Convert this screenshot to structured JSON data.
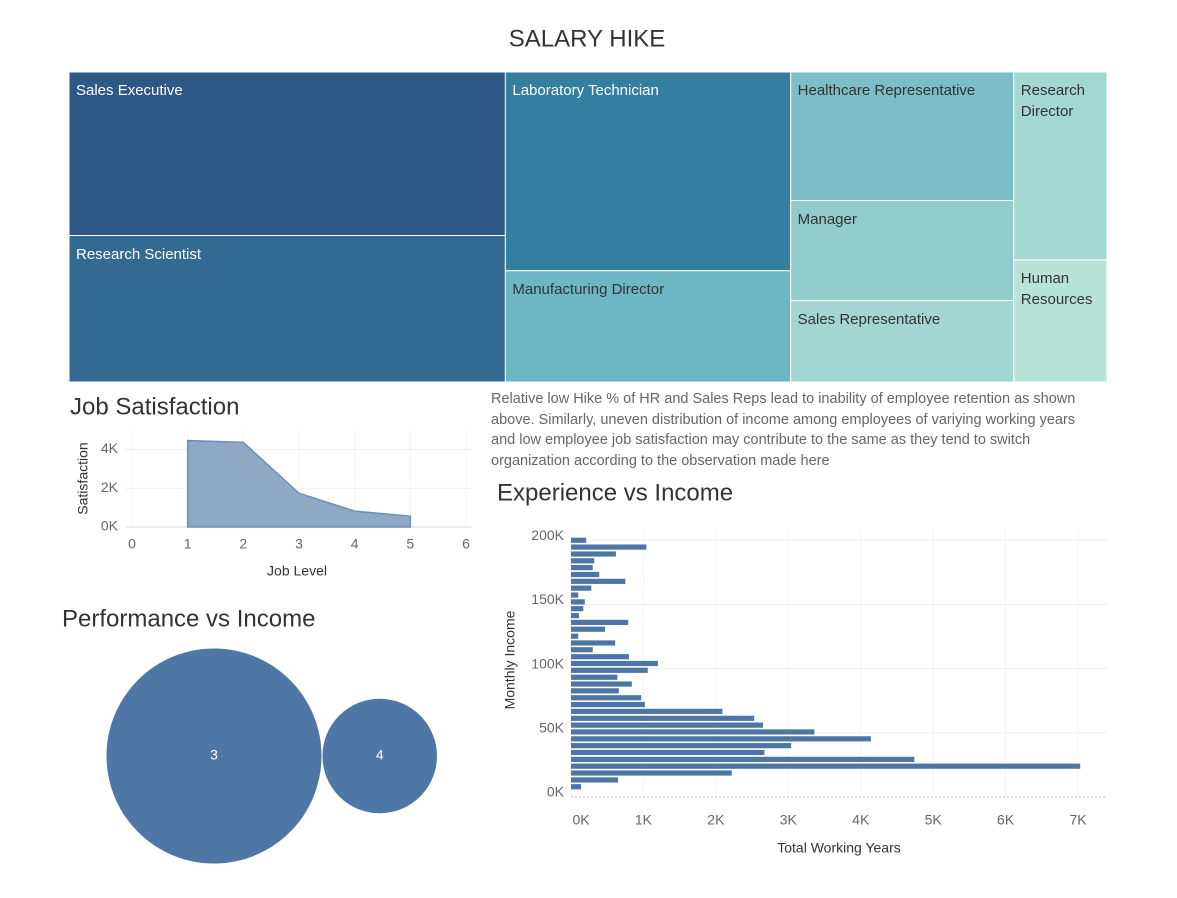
{
  "text": "Relative low Hike % of HR and Sales Reps lead to inability of employee retention as shown above. Similarly, uneven distribution of income among employees of variying working years and low employee job satisfaction may contribute to the same as they tend to switch organization according to the observation made here",
  "chart_data": [
    {
      "type": "treemap",
      "title": "SALARY HIKE",
      "categories": [
        "Sales Executive",
        "Research Scientist",
        "Laboratory Technician",
        "Manufacturing Director",
        "Healthcare Representative",
        "Manager",
        "Sales Representative",
        "Research Director",
        "Human Resources"
      ],
      "values": [
        4955,
        4438,
        3937,
        2204,
        1991,
        1550,
        1262,
        1216,
        790
      ],
      "colors": [
        "#2e5886",
        "#336a92",
        "#347ea0",
        "#6db7c4",
        "#7bbec8",
        "#91cbcb",
        "#a3d6d2",
        "#a3d7d2",
        "#b8e4d8"
      ]
    },
    {
      "type": "area",
      "title": "Job Satisfaction",
      "xlabel": "Job Level",
      "ylabel": "Satisfaction",
      "x": [
        1,
        2,
        3,
        4,
        5
      ],
      "values": [
        4460,
        4360,
        1740,
        820,
        560
      ],
      "color": "#8fa8c6",
      "line_color": "#6e8fb5",
      "xlim": [
        0,
        6
      ],
      "xticks": [
        0,
        1,
        2,
        3,
        4,
        5,
        6
      ],
      "ylim": [
        0,
        5000
      ],
      "yticks": [
        {
          "value": 0,
          "label": "0K"
        },
        {
          "value": 2000,
          "label": "2K"
        },
        {
          "value": 4000,
          "label": "4K"
        }
      ],
      "grid": true
    },
    {
      "type": "bubble",
      "title": "Performance vs Income",
      "categories": [
        "3",
        "4"
      ],
      "values": [
        3.5,
        1
      ],
      "color": "#4e77a5"
    },
    {
      "type": "bar",
      "orientation": "horizontal",
      "title": "Experience vs Income",
      "xlabel": "Total Working Years",
      "ylabel": "Monthly Income",
      "y": [
        8000,
        13300,
        18700,
        24000,
        29300,
        34700,
        40000,
        45300,
        50700,
        56000,
        61300,
        66700,
        72000,
        77300,
        82700,
        88000,
        93300,
        98700,
        104000,
        109300,
        114700,
        120000,
        125300,
        130700,
        136000,
        141300,
        146700,
        152000,
        157300,
        162700,
        168000,
        173300,
        178700,
        184000,
        189300,
        194700,
        200000
      ],
      "values": [
        140,
        650,
        2220,
        7030,
        4740,
        2670,
        3040,
        4140,
        3360,
        2650,
        2530,
        2090,
        1020,
        970,
        660,
        840,
        640,
        1060,
        1200,
        800,
        300,
        610,
        100,
        470,
        790,
        110,
        170,
        190,
        100,
        280,
        750,
        390,
        300,
        320,
        620,
        1040,
        210
      ],
      "color": "#4e76a4",
      "xlim": [
        0,
        7400
      ],
      "xticks": [
        {
          "value": 0,
          "label": "0K"
        },
        {
          "value": 1000,
          "label": "1K"
        },
        {
          "value": 2000,
          "label": "2K"
        },
        {
          "value": 3000,
          "label": "3K"
        },
        {
          "value": 4000,
          "label": "4K"
        },
        {
          "value": 5000,
          "label": "5K"
        },
        {
          "value": 6000,
          "label": "6K"
        },
        {
          "value": 7000,
          "label": "7K"
        }
      ],
      "ylim": [
        0,
        208000
      ],
      "yticks": [
        {
          "value": 0,
          "label": "0K"
        },
        {
          "value": 50000,
          "label": "50K"
        },
        {
          "value": 100000,
          "label": "100K"
        },
        {
          "value": 150000,
          "label": "150K"
        },
        {
          "value": 200000,
          "label": "200K"
        }
      ],
      "grid": true
    }
  ]
}
